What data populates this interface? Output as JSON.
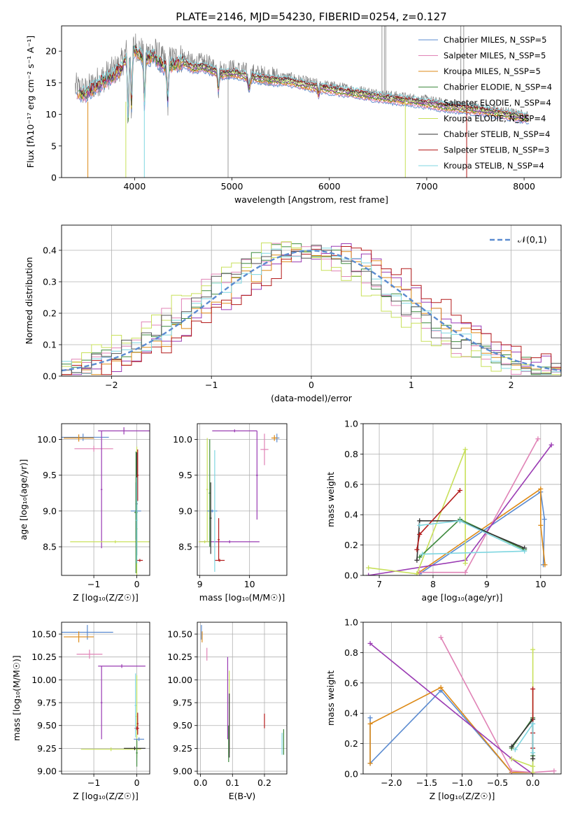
{
  "chart_data": [
    {
      "type": "line",
      "id": "spectrum",
      "title": "PLATE=2146, MJD=54230, FIBERID=0254, z=0.127",
      "xlabel": "wavelength [Angstrom, rest frame]",
      "ylabel": "Flux [fλ10⁻¹⁷ erg cm⁻² s⁻¹ A⁻¹]",
      "xlim": [
        3250,
        8380
      ],
      "ylim": [
        0,
        24
      ],
      "xticks": [
        4000,
        5000,
        6000,
        7000,
        8000
      ],
      "yticks": [
        0,
        5,
        10,
        15,
        20
      ],
      "legend_position": "upper-right",
      "data_color": "#808080",
      "data_envelope": {
        "x": [
          3390,
          3500,
          3600,
          3700,
          3800,
          3860,
          3930,
          4000,
          4100,
          4200,
          4300,
          4400,
          4500,
          4600,
          4700,
          4800,
          4900,
          5000,
          5200,
          5400,
          5600,
          5800,
          6000,
          6200,
          6400,
          6600,
          6800,
          7000,
          7200,
          7400,
          7600,
          7800,
          8000,
          8050
        ],
        "y": [
          14.2,
          13.6,
          15.0,
          16.0,
          17.0,
          17.8,
          20.5,
          21.0,
          19.5,
          20.0,
          18.2,
          18.6,
          19.0,
          18.0,
          18.2,
          17.6,
          17.0,
          17.2,
          16.5,
          16.0,
          15.8,
          15.0,
          14.5,
          14.0,
          13.5,
          13.0,
          12.6,
          12.2,
          11.6,
          11.3,
          10.9,
          10.4,
          9.8,
          9.7
        ]
      },
      "series": [
        {
          "name": "Chabrier MILES, N_SSP=5",
          "color": "#5b8bd0"
        },
        {
          "name": "Salpeter MILES, N_SSP=5",
          "color": "#e083b6"
        },
        {
          "name": "Kroupa MILES, N_SSP=5",
          "color": "#dd8a17"
        },
        {
          "name": "Chabrier ELODIE, N_SSP=4",
          "color": "#3f8a3f"
        },
        {
          "name": "Salpeter ELODIE, N_SSP=4",
          "color": "#9a3bb3"
        },
        {
          "name": "Kroupa ELODIE, N_SSP=4",
          "color": "#c8e05a"
        },
        {
          "name": "Chabrier STELIB, N_SSP=4",
          "color": "#333333"
        },
        {
          "name": "Salpeter STELIB, N_SSP=3",
          "color": "#b31a1a"
        },
        {
          "name": "Kroupa STELIB, N_SSP=4",
          "color": "#7fd6e0"
        }
      ]
    },
    {
      "type": "area",
      "id": "residuals",
      "xlabel": "(data-model)/error",
      "ylabel": "Normed distribution",
      "xlim": [
        -2.5,
        2.5
      ],
      "ylim": [
        0,
        0.48
      ],
      "xticks": [
        -2,
        -1,
        0,
        1,
        2
      ],
      "yticks": [
        0.0,
        0.1,
        0.2,
        0.3,
        0.4
      ],
      "legend_position": "upper-right",
      "gaussian": {
        "name": "𝒩(0,1)",
        "color": "#5b8bd0",
        "mean": 0,
        "sigma": 1
      },
      "bin_width": 0.1,
      "histograms": [
        {
          "color": "#3f8a3f",
          "shift": 0.012
        },
        {
          "color": "#9a3bb3",
          "shift": -0.018
        },
        {
          "color": "#e083b6",
          "shift": 0.022
        },
        {
          "color": "#dd8a17",
          "shift": -0.008
        },
        {
          "color": "#c8e05a",
          "shift": 0.03
        },
        {
          "color": "#b31a1a",
          "shift": -0.025
        },
        {
          "color": "#7fd6e0",
          "shift": 0.005
        },
        {
          "color": "#555555",
          "shift": 0.016
        }
      ]
    },
    {
      "type": "scatter",
      "id": "age-vs-Z",
      "xlabel": "Z [log₁₀(Z/Z☉)]",
      "ylabel": "age  [log₁₀(age/yr)]",
      "xlim": [
        -1.75,
        0.3
      ],
      "ylim": [
        8.1,
        10.22
      ],
      "xticks": [
        -1,
        0
      ],
      "yticks": [
        8.5,
        9.0,
        9.5,
        10.0
      ],
      "points": [
        {
          "x": -1.25,
          "y": 10.03,
          "xerr": 0.6,
          "yerr": 0.05,
          "color": "#5b8bd0"
        },
        {
          "x": -1.35,
          "y": 10.02,
          "xerr": 0.35,
          "yerr": 0.05,
          "color": "#dd8a17"
        },
        {
          "x": -1.0,
          "y": 9.87,
          "xerr": 0.45,
          "yerr": 0.04,
          "color": "#e083b6"
        },
        {
          "x": -0.3,
          "y": 10.12,
          "xerr": 0.6,
          "yerr": 0.05,
          "color": "#9a3bb3"
        },
        {
          "x": -0.82,
          "y": 9.3,
          "xerr": 0.02,
          "yerr": 0.82,
          "color": "#9a3bb3"
        },
        {
          "x": -0.5,
          "y": 8.57,
          "xerr": 1.05,
          "yerr": 0.02,
          "color": "#c8e05a"
        },
        {
          "x": 0.0,
          "y": 8.75,
          "xerr": 0.02,
          "yerr": 1.15,
          "color": "#c8e05a"
        },
        {
          "x": -0.02,
          "y": 9.0,
          "xerr": 0.12,
          "yerr": 0.4,
          "color": "#5b8bd0"
        },
        {
          "x": -0.02,
          "y": 8.98,
          "xerr": 0.04,
          "yerr": 0.85,
          "color": "#3f8a3f"
        },
        {
          "x": 0.0,
          "y": 9.1,
          "xerr": 0.02,
          "yerr": 0.72,
          "color": "#333333"
        },
        {
          "x": 0.02,
          "y": 9.5,
          "xerr": 0.02,
          "yerr": 0.36,
          "color": "#b31a1a"
        },
        {
          "x": 0.07,
          "y": 8.31,
          "xerr": 0.07,
          "yerr": 0.02,
          "color": "#b31a1a"
        },
        {
          "x": 0.0,
          "y": 8.87,
          "xerr": 0.02,
          "yerr": 0.6,
          "color": "#7fd6e0"
        }
      ]
    },
    {
      "type": "scatter",
      "id": "age-vs-mass",
      "xlabel": "mass [log₁₀(M/M☉)]",
      "ylabel": "",
      "xlim": [
        8.95,
        10.75
      ],
      "ylim": [
        8.1,
        10.22
      ],
      "xticks": [
        9,
        10
      ],
      "yticks": [
        8.5,
        9.0,
        9.5,
        10.0
      ],
      "points": [
        {
          "x": 10.55,
          "y": 10.02,
          "xerr": 0.05,
          "yerr": 0.06,
          "color": "#5b8bd0"
        },
        {
          "x": 10.5,
          "y": 10.02,
          "xerr": 0.06,
          "yerr": 0.04,
          "color": "#dd8a17"
        },
        {
          "x": 10.3,
          "y": 9.86,
          "xerr": 0.08,
          "yerr": 0.22,
          "color": "#e083b6"
        },
        {
          "x": 9.7,
          "y": 10.12,
          "xerr": 0.45,
          "yerr": 0.02,
          "color": "#9a3bb3"
        },
        {
          "x": 10.15,
          "y": 9.5,
          "xerr": 0.02,
          "yerr": 0.62,
          "color": "#9a3bb3"
        },
        {
          "x": 9.6,
          "y": 8.57,
          "xerr": 0.6,
          "yerr": 0.02,
          "color": "#9a3bb3"
        },
        {
          "x": 9.15,
          "y": 9.3,
          "xerr": 0.02,
          "yerr": 0.72,
          "color": "#c8e05a"
        },
        {
          "x": 9.1,
          "y": 8.57,
          "xerr": 0.12,
          "yerr": 0.02,
          "color": "#c8e05a"
        },
        {
          "x": 9.25,
          "y": 9.0,
          "xerr": 0.1,
          "yerr": 0.02,
          "color": "#5b8bd0"
        },
        {
          "x": 9.2,
          "y": 9.25,
          "xerr": 0.02,
          "yerr": 0.75,
          "color": "#3f8a3f"
        },
        {
          "x": 9.22,
          "y": 8.9,
          "xerr": 0.02,
          "yerr": 0.5,
          "color": "#333333"
        },
        {
          "x": 9.4,
          "y": 8.31,
          "xerr": 0.1,
          "yerr": 0.02,
          "color": "#b31a1a"
        },
        {
          "x": 9.38,
          "y": 8.6,
          "xerr": 0.02,
          "yerr": 0.3,
          "color": "#b31a1a"
        },
        {
          "x": 9.3,
          "y": 9.0,
          "xerr": 0.02,
          "yerr": 0.85,
          "color": "#7fd6e0"
        }
      ]
    },
    {
      "type": "line",
      "id": "weight-vs-age",
      "xlabel": "age  [log₁₀(age/yr)]",
      "ylabel": "mass weight",
      "xlim": [
        6.7,
        10.38
      ],
      "ylim": [
        0,
        1.0
      ],
      "xticks": [
        7,
        8,
        9,
        10
      ],
      "yticks": [
        0.0,
        0.2,
        0.4,
        0.6,
        0.8,
        1.0
      ],
      "series": [
        {
          "color": "#5b8bd0",
          "x": [
            7.75,
            10.0,
            10.07,
            10.05
          ],
          "y": [
            0.01,
            0.55,
            0.37,
            0.07
          ]
        },
        {
          "color": "#dd8a17",
          "x": [
            7.7,
            10.0,
            10.0,
            10.08
          ],
          "y": [
            0.01,
            0.57,
            0.33,
            0.07
          ]
        },
        {
          "color": "#e083b6",
          "x": [
            7.75,
            8.6,
            9.95
          ],
          "y": [
            0.02,
            0.02,
            0.9
          ]
        },
        {
          "color": "#9a3bb3",
          "x": [
            6.8,
            8.6,
            10.2
          ],
          "y": [
            0.0,
            0.1,
            0.86
          ]
        },
        {
          "color": "#c8e05a",
          "x": [
            6.8,
            7.7,
            8.6,
            8.6
          ],
          "y": [
            0.05,
            0.01,
            0.83,
            0.08
          ]
        },
        {
          "color": "#3f8a3f",
          "x": [
            7.75,
            8.5,
            9.7
          ],
          "y": [
            0.12,
            0.37,
            0.17
          ]
        },
        {
          "color": "#333333",
          "x": [
            7.7,
            7.75,
            8.5,
            9.7
          ],
          "y": [
            0.1,
            0.36,
            0.36,
            0.18
          ]
        },
        {
          "color": "#b31a1a",
          "x": [
            7.7,
            7.75,
            8.5
          ],
          "y": [
            0.17,
            0.27,
            0.56
          ]
        },
        {
          "color": "#7fd6e0",
          "x": [
            7.75,
            8.5,
            9.7,
            7.8
          ],
          "y": [
            0.33,
            0.36,
            0.16,
            0.14
          ]
        }
      ]
    },
    {
      "type": "scatter",
      "id": "mass-vs-Z",
      "xlabel": "Z [log₁₀(Z/Z☉)]",
      "ylabel": "mass [log₁₀(M/M☉)]",
      "xlim": [
        -1.75,
        0.3
      ],
      "ylim": [
        8.97,
        10.63
      ],
      "xticks": [
        -1,
        0
      ],
      "yticks": [
        9.0,
        9.25,
        9.5,
        9.75,
        10.0,
        10.25,
        10.5
      ],
      "points": [
        {
          "x": -1.15,
          "y": 10.52,
          "xerr": 0.6,
          "yerr": 0.08,
          "color": "#5b8bd0"
        },
        {
          "x": -1.35,
          "y": 10.47,
          "xerr": 0.35,
          "yerr": 0.06,
          "color": "#dd8a17"
        },
        {
          "x": -1.1,
          "y": 10.28,
          "xerr": 0.3,
          "yerr": 0.05,
          "color": "#e083b6"
        },
        {
          "x": -0.35,
          "y": 10.15,
          "xerr": 0.55,
          "yerr": 0.02,
          "color": "#9a3bb3"
        },
        {
          "x": -0.82,
          "y": 9.75,
          "xerr": 0.02,
          "yerr": 0.4,
          "color": "#9a3bb3"
        },
        {
          "x": -0.6,
          "y": 9.24,
          "xerr": 0.7,
          "yerr": 0.02,
          "color": "#c8e05a"
        },
        {
          "x": 0.0,
          "y": 9.6,
          "xerr": 0.02,
          "yerr": 0.45,
          "color": "#c8e05a"
        },
        {
          "x": -0.05,
          "y": 9.25,
          "xerr": 0.25,
          "yerr": 0.02,
          "color": "#333333"
        },
        {
          "x": 0.0,
          "y": 9.2,
          "xerr": 0.02,
          "yerr": 0.15,
          "color": "#3f8a3f"
        },
        {
          "x": 0.05,
          "y": 9.35,
          "xerr": 0.12,
          "yerr": 0.02,
          "color": "#5b8bd0"
        },
        {
          "x": 0.02,
          "y": 9.52,
          "xerr": 0.02,
          "yerr": 0.12,
          "color": "#b31a1a"
        },
        {
          "x": 0.0,
          "y": 9.47,
          "xerr": 0.05,
          "yerr": 0.02,
          "color": "#b31a1a"
        },
        {
          "x": -0.03,
          "y": 9.72,
          "xerr": 0.02,
          "yerr": 0.35,
          "color": "#7fd6e0"
        }
      ]
    },
    {
      "type": "scatter",
      "id": "mass-vs-EBV",
      "xlabel": "E(B-V)",
      "ylabel": "",
      "xlim": [
        -0.01,
        0.27
      ],
      "ylim": [
        8.97,
        10.63
      ],
      "xticks": [
        0.0,
        0.1,
        0.2
      ],
      "yticks": [
        9.0,
        9.25,
        9.5,
        9.75,
        10.0,
        10.25,
        10.5
      ],
      "points": [
        {
          "x": 0.003,
          "y": 10.52,
          "xerr": 0.0,
          "yerr": 0.08,
          "color": "#5b8bd0"
        },
        {
          "x": 0.005,
          "y": 10.47,
          "xerr": 0.0,
          "yerr": 0.06,
          "color": "#dd8a17"
        },
        {
          "x": 0.02,
          "y": 10.28,
          "xerr": 0.0,
          "yerr": 0.07,
          "color": "#e083b6"
        },
        {
          "x": 0.085,
          "y": 9.8,
          "xerr": 0.0,
          "yerr": 0.45,
          "color": "#9a3bb3"
        },
        {
          "x": 0.09,
          "y": 9.65,
          "xerr": 0.0,
          "yerr": 0.45,
          "color": "#c8e05a"
        },
        {
          "x": 0.088,
          "y": 9.3,
          "xerr": 0.0,
          "yerr": 0.2,
          "color": "#3f8a3f"
        },
        {
          "x": 0.09,
          "y": 9.5,
          "xerr": 0.0,
          "yerr": 0.35,
          "color": "#333333"
        },
        {
          "x": 0.2,
          "y": 9.55,
          "xerr": 0.0,
          "yerr": 0.08,
          "color": "#b31a1a"
        },
        {
          "x": 0.255,
          "y": 9.3,
          "xerr": 0.0,
          "yerr": 0.12,
          "color": "#7fd6e0"
        },
        {
          "x": 0.26,
          "y": 9.32,
          "xerr": 0.0,
          "yerr": 0.14,
          "color": "#3f8a3f"
        }
      ]
    },
    {
      "type": "line",
      "id": "weight-vs-Z",
      "xlabel": "Z [log₁₀(Z/Z☉)]",
      "ylabel": "mass weight",
      "xlim": [
        -2.4,
        0.4
      ],
      "ylim": [
        0,
        1.0
      ],
      "xticks": [
        -2.0,
        -1.5,
        -1.0,
        -0.5,
        0.0
      ],
      "yticks": [
        0.0,
        0.2,
        0.4,
        0.6,
        0.8,
        1.0
      ],
      "series": [
        {
          "color": "#5b8bd0",
          "x": [
            -2.3,
            -2.3,
            -1.3,
            -0.3,
            0.0,
            0.0
          ],
          "y": [
            0.37,
            0.07,
            0.55,
            0.01,
            0.01,
            0.33
          ]
        },
        {
          "color": "#dd8a17",
          "x": [
            -2.3,
            -2.3,
            -1.3,
            -0.3,
            0.0
          ],
          "y": [
            0.07,
            0.33,
            0.57,
            0.01,
            0.01
          ]
        },
        {
          "color": "#e083b6",
          "x": [
            -1.3,
            -0.3,
            0.0,
            0.3
          ],
          "y": [
            0.9,
            0.02,
            0.01,
            0.02
          ]
        },
        {
          "color": "#9a3bb3",
          "x": [
            -2.3,
            -0.3,
            0.0
          ],
          "y": [
            0.86,
            0.1,
            0.0
          ]
        },
        {
          "color": "#c8e05a",
          "x": [
            -0.3,
            0.0,
            0.0,
            0.0
          ],
          "y": [
            0.1,
            0.05,
            0.82,
            0.01
          ]
        },
        {
          "color": "#3f8a3f",
          "x": [
            -0.3,
            0.0,
            0.0
          ],
          "y": [
            0.17,
            0.37,
            0.12
          ]
        },
        {
          "color": "#333333",
          "x": [
            -0.3,
            0.0,
            0.0
          ],
          "y": [
            0.18,
            0.36,
            0.1
          ]
        },
        {
          "color": "#b31a1a",
          "x": [
            0.0,
            0.0,
            0.0
          ],
          "y": [
            0.56,
            0.27,
            0.17
          ]
        },
        {
          "color": "#7fd6e0",
          "x": [
            -0.25,
            0.0,
            0.0
          ],
          "y": [
            0.16,
            0.33,
            0.14
          ]
        }
      ]
    }
  ]
}
